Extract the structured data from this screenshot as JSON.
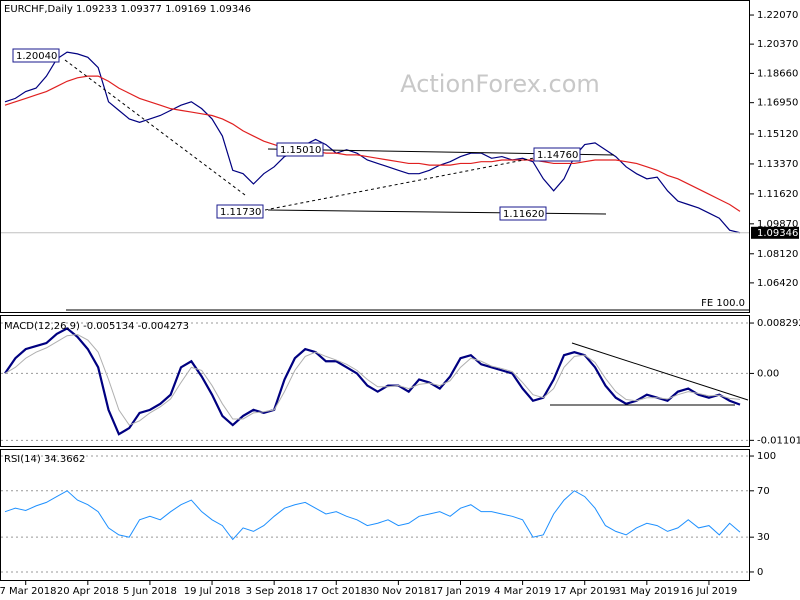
{
  "chart_data": [
    {
      "type": "line",
      "title": "EURCHF,Daily  1.09233 1.09377 1.09169 1.09346",
      "watermark": "ActionForex.com",
      "annotations": [
        "1.20040",
        "1.15010",
        "1.14760",
        "1.11730",
        "1.11620",
        "FE 100.0"
      ],
      "last_price": {
        "value": 1.09346,
        "label": "1.09346"
      },
      "ylim": [
        1.0466,
        1.2289
      ],
      "yticks": [
        {
          "value": 1.2207,
          "label": "1.22070"
        },
        {
          "value": 1.2037,
          "label": "1.20370"
        },
        {
          "value": 1.1866,
          "label": "1.18660"
        },
        {
          "value": 1.1695,
          "label": "1.16950"
        },
        {
          "value": 1.1512,
          "label": "1.15120"
        },
        {
          "value": 1.1337,
          "label": "1.13370"
        },
        {
          "value": 1.1162,
          "label": "1.11620"
        },
        {
          "value": 1.0987,
          "label": "1.09870"
        },
        {
          "value": 1.0812,
          "label": "1.08120"
        },
        {
          "value": 1.0642,
          "label": "1.06420"
        }
      ],
      "series": [
        {
          "color": "#000080",
          "width": 1.2,
          "values": [
            1.17,
            1.172,
            1.176,
            1.178,
            1.185,
            1.195,
            1.199,
            1.198,
            1.196,
            1.19,
            1.17,
            1.165,
            1.16,
            1.158,
            1.16,
            1.162,
            1.165,
            1.168,
            1.17,
            1.166,
            1.16,
            1.15,
            1.13,
            1.128,
            1.122,
            1.128,
            1.132,
            1.138,
            1.14,
            1.145,
            1.148,
            1.145,
            1.14,
            1.142,
            1.14,
            1.136,
            1.134,
            1.132,
            1.13,
            1.128,
            1.128,
            1.13,
            1.133,
            1.135,
            1.138,
            1.14,
            1.14,
            1.137,
            1.138,
            1.136,
            1.137,
            1.135,
            1.125,
            1.118,
            1.125,
            1.138,
            1.145,
            1.146,
            1.142,
            1.138,
            1.132,
            1.128,
            1.125,
            1.126,
            1.118,
            1.112,
            1.11,
            1.108,
            1.105,
            1.102,
            1.095,
            1.0935
          ]
        },
        {
          "color": "#e02020",
          "width": 1.2,
          "values": [
            1.168,
            1.17,
            1.172,
            1.174,
            1.176,
            1.179,
            1.182,
            1.184,
            1.185,
            1.185,
            1.182,
            1.178,
            1.175,
            1.172,
            1.17,
            1.168,
            1.166,
            1.165,
            1.164,
            1.163,
            1.162,
            1.16,
            1.157,
            1.153,
            1.15,
            1.147,
            1.145,
            1.143,
            1.142,
            1.141,
            1.141,
            1.14,
            1.14,
            1.139,
            1.139,
            1.138,
            1.137,
            1.136,
            1.135,
            1.134,
            1.134,
            1.133,
            1.133,
            1.133,
            1.134,
            1.134,
            1.135,
            1.135,
            1.136,
            1.136,
            1.136,
            1.136,
            1.135,
            1.134,
            1.134,
            1.134,
            1.135,
            1.136,
            1.136,
            1.136,
            1.135,
            1.134,
            1.132,
            1.13,
            1.127,
            1.125,
            1.122,
            1.119,
            1.116,
            1.113,
            1.11,
            1.106
          ]
        }
      ]
    },
    {
      "type": "line",
      "title": "MACD(12,26,9) -0.005134 -0.004273",
      "ylim": [
        -0.01211,
        0.00945
      ],
      "yticks": [
        0.008292,
        {
          "value": 0,
          "label": "0.00"
        },
        -0.011015
      ],
      "series": [
        {
          "color": "#000080",
          "width": 2.2,
          "values": [
            0.0,
            0.0025,
            0.004,
            0.0045,
            0.005,
            0.0065,
            0.0074,
            0.006,
            0.004,
            0.001,
            -0.006,
            -0.01,
            -0.009,
            -0.0065,
            -0.006,
            -0.005,
            -0.0035,
            0.001,
            0.002,
            -0.0005,
            -0.0035,
            -0.007,
            -0.0085,
            -0.007,
            -0.006,
            -0.0065,
            -0.006,
            -0.001,
            0.0025,
            0.004,
            0.0035,
            0.002,
            0.002,
            0.001,
            0.0,
            -0.002,
            -0.003,
            -0.002,
            -0.002,
            -0.003,
            -0.001,
            -0.0015,
            -0.0025,
            -0.0005,
            0.0025,
            0.003,
            0.0015,
            0.001,
            0.0005,
            0.0,
            -0.0025,
            -0.0045,
            -0.004,
            -0.001,
            0.003,
            0.0035,
            0.003,
            0.001,
            -0.002,
            -0.004,
            -0.005,
            -0.0045,
            -0.0035,
            -0.004,
            -0.0045,
            -0.003,
            -0.0025,
            -0.0035,
            -0.004,
            -0.0035,
            -0.0045,
            -0.005134
          ]
        },
        {
          "color": "#b0b0b0",
          "width": 1,
          "values": [
            0.0,
            0.001,
            0.0025,
            0.0035,
            0.0042,
            0.0052,
            0.0062,
            0.0064,
            0.0055,
            0.0035,
            -0.001,
            -0.006,
            -0.0085,
            -0.0078,
            -0.0065,
            -0.0055,
            -0.0042,
            -0.0015,
            0.001,
            0.0005,
            -0.002,
            -0.005,
            -0.0075,
            -0.0075,
            -0.0065,
            -0.0063,
            -0.006,
            -0.003,
            0.0005,
            0.0028,
            0.0035,
            0.0028,
            0.0022,
            0.0015,
            0.0005,
            -0.001,
            -0.0022,
            -0.0022,
            -0.002,
            -0.0025,
            -0.0018,
            -0.0016,
            -0.002,
            -0.0012,
            0.001,
            0.0025,
            0.002,
            0.0012,
            0.0008,
            0.0003,
            -0.0015,
            -0.0035,
            -0.004,
            -0.0025,
            0.001,
            0.0028,
            0.003,
            0.0018,
            -0.0008,
            -0.003,
            -0.0043,
            -0.0045,
            -0.004,
            -0.004,
            -0.0042,
            -0.0035,
            -0.003,
            -0.0033,
            -0.0037,
            -0.0036,
            -0.0041,
            -0.004273
          ]
        }
      ]
    },
    {
      "type": "line",
      "title": "RSI(14) 34.3662",
      "ylim": [
        -7.8,
        105.2
      ],
      "yticks": [
        100,
        70,
        30,
        0
      ],
      "categories": [
        null,
        null,
        "7 Mar 2018",
        null,
        null,
        null,
        null,
        null,
        "20 Apr 2018",
        null,
        null,
        null,
        null,
        null,
        "5 Jun 2018",
        null,
        null,
        null,
        null,
        null,
        "19 Jul 2018",
        null,
        null,
        null,
        null,
        null,
        "3 Sep 2018",
        null,
        null,
        null,
        null,
        null,
        "17 Oct 2018",
        null,
        null,
        null,
        null,
        null,
        "30 Nov 2018",
        null,
        null,
        null,
        null,
        null,
        "17 Jan 2019",
        null,
        null,
        null,
        null,
        null,
        "4 Mar 2019",
        null,
        null,
        null,
        null,
        null,
        "17 Apr 2019",
        null,
        null,
        null,
        null,
        null,
        "31 May 2019",
        null,
        null,
        null,
        null,
        null,
        "16 Jul 2019",
        null,
        null,
        null
      ],
      "series": [
        {
          "color": "#1e90ff",
          "width": 1,
          "values": [
            52,
            55,
            53,
            57,
            60,
            65,
            70,
            62,
            58,
            52,
            38,
            32,
            30,
            45,
            48,
            45,
            52,
            58,
            62,
            52,
            45,
            40,
            28,
            38,
            35,
            40,
            48,
            55,
            58,
            60,
            55,
            50,
            52,
            48,
            45,
            40,
            42,
            45,
            40,
            42,
            48,
            50,
            52,
            48,
            55,
            58,
            52,
            52,
            50,
            48,
            45,
            30,
            32,
            50,
            62,
            70,
            65,
            55,
            40,
            35,
            32,
            38,
            42,
            40,
            35,
            38,
            45,
            38,
            40,
            32,
            42,
            34.3662
          ]
        }
      ]
    }
  ]
}
